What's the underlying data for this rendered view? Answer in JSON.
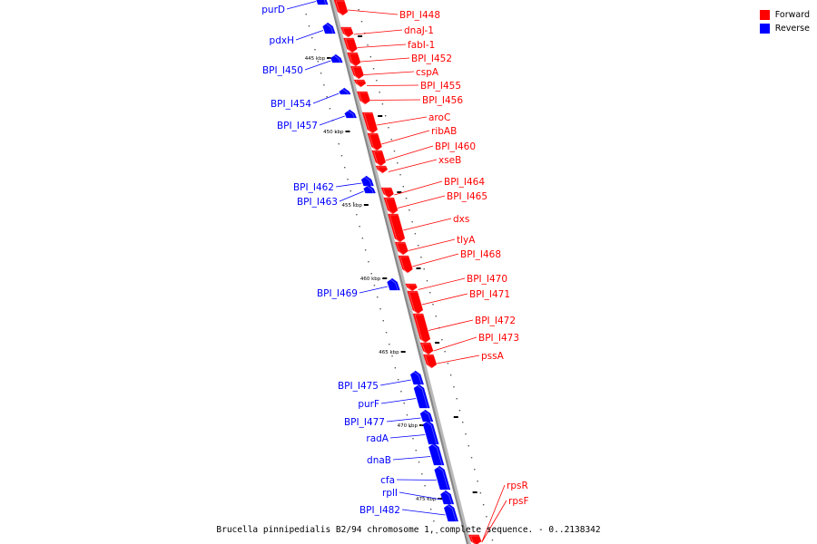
{
  "caption": "Brucella pinnipedialis B2/94 chromosome 1, complete sequence. - 0..2138342",
  "legend": [
    {
      "label": "Forward",
      "color": "#ff0000"
    },
    {
      "label": "Reverse",
      "color": "#0000ff"
    }
  ],
  "colors": {
    "forward": "#ff0000",
    "reverse": "#0000ff",
    "backbone": "#888888"
  },
  "kbp_ticks": [
    "445 kbp",
    "450 kbp",
    "455 kbp",
    "460 kbp",
    "465 kbp",
    "470 kbp",
    "475 kbp"
  ],
  "forward_genes": [
    "BPI_I448",
    "dnaJ-1",
    "fabI-1",
    "BPI_I452",
    "cspA",
    "BPI_I455",
    "BPI_I456",
    "aroC",
    "ribAB",
    "BPI_I460",
    "xseB",
    "BPI_I464",
    "BPI_I465",
    "dxs",
    "tlyA",
    "BPI_I468",
    "BPI_I470",
    "BPI_I471",
    "BPI_I472",
    "BPI_I473",
    "pssA",
    "rpsR",
    "rpsF"
  ],
  "reverse_genes": [
    "purD",
    "pdxH",
    "BPI_I450",
    "BPI_I454",
    "BPI_I457",
    "BPI_I462",
    "BPI_I463",
    "BPI_I469",
    "BPI_I475",
    "purF",
    "BPI_I477",
    "radA",
    "dnaB",
    "cfa",
    "rplI",
    "BPI_I482"
  ]
}
